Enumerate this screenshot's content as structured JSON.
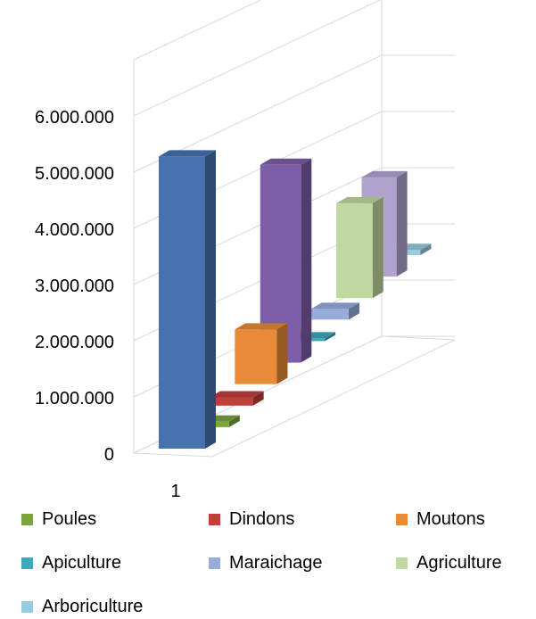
{
  "chart_data": {
    "type": "bar",
    "style": "3d-clustered",
    "categories": [
      "1"
    ],
    "yticks": [
      "0",
      "1.000.000",
      "2.000.000",
      "3.000.000",
      "4.000.000",
      "5.000.000",
      "6.000.000"
    ],
    "ylim": [
      0,
      6000000
    ],
    "grid": true,
    "legend_position": "bottom",
    "series": [
      {
        "name": "",
        "values": [
          5200000
        ],
        "color": "#4672b0"
      },
      {
        "name": "Poules",
        "values": [
          100000
        ],
        "color": "#7ba63f"
      },
      {
        "name": "Dindons",
        "values": [
          150000
        ],
        "color": "#c0413c"
      },
      {
        "name": "Moutons",
        "values": [
          1000000
        ],
        "color": "#e88b38"
      },
      {
        "name": "",
        "values": [
          3650000
        ],
        "color": "#7d5ea8"
      },
      {
        "name": "Apiculture",
        "values": [
          50000
        ],
        "color": "#3fa8bf"
      },
      {
        "name": "Maraichage",
        "values": [
          200000
        ],
        "color": "#98acdc"
      },
      {
        "name": "Agriculture",
        "values": [
          1800000
        ],
        "color": "#c0d9a0"
      },
      {
        "name": "",
        "values": [
          1900000
        ],
        "color": "#b0a4cf"
      },
      {
        "name": "Arboriculture",
        "values": [
          100000
        ],
        "color": "#96cce0"
      }
    ]
  }
}
